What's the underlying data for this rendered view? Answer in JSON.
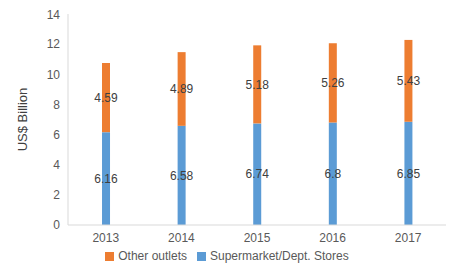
{
  "chart_data": {
    "type": "bar",
    "stacked": true,
    "data_labels": true,
    "grid": false,
    "legend": "bottom",
    "y_label": "US$ Billion",
    "categories": [
      "2013",
      "2014",
      "2015",
      "2016",
      "2017"
    ],
    "series": [
      {
        "name": "Supermarket/Dept. Stores",
        "color": "#5b9bd5",
        "values": [
          6.16,
          6.58,
          6.74,
          6.8,
          6.85
        ]
      },
      {
        "name": "Other outlets",
        "color": "#ed7d31",
        "values": [
          4.59,
          4.89,
          5.18,
          5.26,
          5.43
        ]
      }
    ],
    "ylim": [
      0,
      14
    ],
    "yticks": [
      0,
      2,
      4,
      6,
      8,
      10,
      12,
      14
    ]
  }
}
